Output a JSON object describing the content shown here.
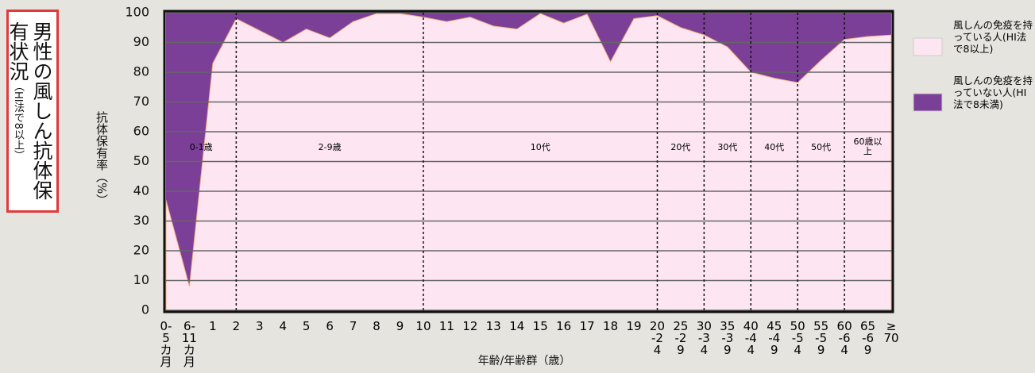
{
  "chart_data": {
    "type": "stacked_area",
    "title": "男性の風しん抗体保有状況",
    "subtitle": "（HI法で8以上）",
    "y_label": "抗体保有率（%）",
    "x_label": "年齢/年齢群（歳）",
    "categories": [
      "0-5カ月",
      "6-11カ月",
      "1",
      "2",
      "3",
      "4",
      "5",
      "6",
      "7",
      "8",
      "9",
      "10",
      "11",
      "12",
      "13",
      "14",
      "15",
      "16",
      "17",
      "18",
      "19",
      "20-24",
      "25-29",
      "30-34",
      "35-39",
      "40-44",
      "45-49",
      "50-54",
      "55-59",
      "60-64",
      "65-69",
      "≥70"
    ],
    "series": [
      {
        "name": "風しんの免疫を持っている人(HI法で8以上)",
        "color": "#fde6f2",
        "values": [
          37,
          8,
          83,
          98,
          94,
          90,
          94.5,
          91.5,
          97,
          99.7,
          99.7,
          98.5,
          97,
          98.5,
          95.5,
          94.5,
          99.7,
          96.5,
          99.5,
          83.5,
          98,
          99,
          95,
          92.5,
          88.5,
          80,
          78,
          76.5,
          84,
          91,
          92,
          92.5
        ]
      },
      {
        "name": "風しんの免疫を持っていない人(HI法で8未満)",
        "color": "#7b3f98",
        "values": [
          63,
          92,
          17,
          2,
          6,
          10,
          5.5,
          8.5,
          3,
          0.3,
          0.3,
          1.5,
          3,
          1.5,
          4.5,
          5.5,
          0.3,
          3.5,
          0.5,
          16.5,
          2,
          1,
          5,
          7.5,
          11.5,
          20,
          22,
          23.5,
          16,
          9,
          8,
          7.5
        ]
      }
    ],
    "group_labels": [
      "0-1歳",
      "2-9歳",
      "10代",
      "20代",
      "30代",
      "40代",
      "50代",
      "60歳以上"
    ],
    "ylim": [
      0,
      100
    ],
    "yticks": [
      0,
      10,
      20,
      30,
      40,
      50,
      60,
      70,
      80,
      90,
      100
    ],
    "grid": true
  }
}
